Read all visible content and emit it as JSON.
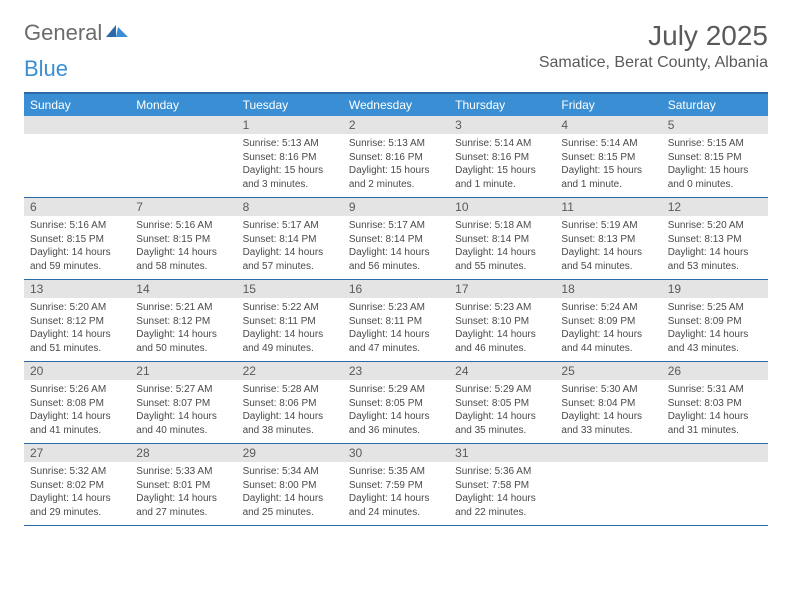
{
  "logo": {
    "general": "General",
    "blue": "Blue"
  },
  "title": "July 2025",
  "location": "Samatice, Berat County, Albania",
  "colors": {
    "header_bg": "#3a8fd4",
    "border": "#2b6aa8",
    "daynum_bg": "#e4e4e4",
    "text_muted": "#5a5a5a",
    "body_text": "#4a4a4a"
  },
  "weekdays": [
    "Sunday",
    "Monday",
    "Tuesday",
    "Wednesday",
    "Thursday",
    "Friday",
    "Saturday"
  ],
  "weeks": [
    [
      {
        "n": "",
        "sunrise": "",
        "sunset": "",
        "daylight": ""
      },
      {
        "n": "",
        "sunrise": "",
        "sunset": "",
        "daylight": ""
      },
      {
        "n": "1",
        "sunrise": "Sunrise: 5:13 AM",
        "sunset": "Sunset: 8:16 PM",
        "daylight": "Daylight: 15 hours and 3 minutes."
      },
      {
        "n": "2",
        "sunrise": "Sunrise: 5:13 AM",
        "sunset": "Sunset: 8:16 PM",
        "daylight": "Daylight: 15 hours and 2 minutes."
      },
      {
        "n": "3",
        "sunrise": "Sunrise: 5:14 AM",
        "sunset": "Sunset: 8:16 PM",
        "daylight": "Daylight: 15 hours and 1 minute."
      },
      {
        "n": "4",
        "sunrise": "Sunrise: 5:14 AM",
        "sunset": "Sunset: 8:15 PM",
        "daylight": "Daylight: 15 hours and 1 minute."
      },
      {
        "n": "5",
        "sunrise": "Sunrise: 5:15 AM",
        "sunset": "Sunset: 8:15 PM",
        "daylight": "Daylight: 15 hours and 0 minutes."
      }
    ],
    [
      {
        "n": "6",
        "sunrise": "Sunrise: 5:16 AM",
        "sunset": "Sunset: 8:15 PM",
        "daylight": "Daylight: 14 hours and 59 minutes."
      },
      {
        "n": "7",
        "sunrise": "Sunrise: 5:16 AM",
        "sunset": "Sunset: 8:15 PM",
        "daylight": "Daylight: 14 hours and 58 minutes."
      },
      {
        "n": "8",
        "sunrise": "Sunrise: 5:17 AM",
        "sunset": "Sunset: 8:14 PM",
        "daylight": "Daylight: 14 hours and 57 minutes."
      },
      {
        "n": "9",
        "sunrise": "Sunrise: 5:17 AM",
        "sunset": "Sunset: 8:14 PM",
        "daylight": "Daylight: 14 hours and 56 minutes."
      },
      {
        "n": "10",
        "sunrise": "Sunrise: 5:18 AM",
        "sunset": "Sunset: 8:14 PM",
        "daylight": "Daylight: 14 hours and 55 minutes."
      },
      {
        "n": "11",
        "sunrise": "Sunrise: 5:19 AM",
        "sunset": "Sunset: 8:13 PM",
        "daylight": "Daylight: 14 hours and 54 minutes."
      },
      {
        "n": "12",
        "sunrise": "Sunrise: 5:20 AM",
        "sunset": "Sunset: 8:13 PM",
        "daylight": "Daylight: 14 hours and 53 minutes."
      }
    ],
    [
      {
        "n": "13",
        "sunrise": "Sunrise: 5:20 AM",
        "sunset": "Sunset: 8:12 PM",
        "daylight": "Daylight: 14 hours and 51 minutes."
      },
      {
        "n": "14",
        "sunrise": "Sunrise: 5:21 AM",
        "sunset": "Sunset: 8:12 PM",
        "daylight": "Daylight: 14 hours and 50 minutes."
      },
      {
        "n": "15",
        "sunrise": "Sunrise: 5:22 AM",
        "sunset": "Sunset: 8:11 PM",
        "daylight": "Daylight: 14 hours and 49 minutes."
      },
      {
        "n": "16",
        "sunrise": "Sunrise: 5:23 AM",
        "sunset": "Sunset: 8:11 PM",
        "daylight": "Daylight: 14 hours and 47 minutes."
      },
      {
        "n": "17",
        "sunrise": "Sunrise: 5:23 AM",
        "sunset": "Sunset: 8:10 PM",
        "daylight": "Daylight: 14 hours and 46 minutes."
      },
      {
        "n": "18",
        "sunrise": "Sunrise: 5:24 AM",
        "sunset": "Sunset: 8:09 PM",
        "daylight": "Daylight: 14 hours and 44 minutes."
      },
      {
        "n": "19",
        "sunrise": "Sunrise: 5:25 AM",
        "sunset": "Sunset: 8:09 PM",
        "daylight": "Daylight: 14 hours and 43 minutes."
      }
    ],
    [
      {
        "n": "20",
        "sunrise": "Sunrise: 5:26 AM",
        "sunset": "Sunset: 8:08 PM",
        "daylight": "Daylight: 14 hours and 41 minutes."
      },
      {
        "n": "21",
        "sunrise": "Sunrise: 5:27 AM",
        "sunset": "Sunset: 8:07 PM",
        "daylight": "Daylight: 14 hours and 40 minutes."
      },
      {
        "n": "22",
        "sunrise": "Sunrise: 5:28 AM",
        "sunset": "Sunset: 8:06 PM",
        "daylight": "Daylight: 14 hours and 38 minutes."
      },
      {
        "n": "23",
        "sunrise": "Sunrise: 5:29 AM",
        "sunset": "Sunset: 8:05 PM",
        "daylight": "Daylight: 14 hours and 36 minutes."
      },
      {
        "n": "24",
        "sunrise": "Sunrise: 5:29 AM",
        "sunset": "Sunset: 8:05 PM",
        "daylight": "Daylight: 14 hours and 35 minutes."
      },
      {
        "n": "25",
        "sunrise": "Sunrise: 5:30 AM",
        "sunset": "Sunset: 8:04 PM",
        "daylight": "Daylight: 14 hours and 33 minutes."
      },
      {
        "n": "26",
        "sunrise": "Sunrise: 5:31 AM",
        "sunset": "Sunset: 8:03 PM",
        "daylight": "Daylight: 14 hours and 31 minutes."
      }
    ],
    [
      {
        "n": "27",
        "sunrise": "Sunrise: 5:32 AM",
        "sunset": "Sunset: 8:02 PM",
        "daylight": "Daylight: 14 hours and 29 minutes."
      },
      {
        "n": "28",
        "sunrise": "Sunrise: 5:33 AM",
        "sunset": "Sunset: 8:01 PM",
        "daylight": "Daylight: 14 hours and 27 minutes."
      },
      {
        "n": "29",
        "sunrise": "Sunrise: 5:34 AM",
        "sunset": "Sunset: 8:00 PM",
        "daylight": "Daylight: 14 hours and 25 minutes."
      },
      {
        "n": "30",
        "sunrise": "Sunrise: 5:35 AM",
        "sunset": "Sunset: 7:59 PM",
        "daylight": "Daylight: 14 hours and 24 minutes."
      },
      {
        "n": "31",
        "sunrise": "Sunrise: 5:36 AM",
        "sunset": "Sunset: 7:58 PM",
        "daylight": "Daylight: 14 hours and 22 minutes."
      },
      {
        "n": "",
        "sunrise": "",
        "sunset": "",
        "daylight": ""
      },
      {
        "n": "",
        "sunrise": "",
        "sunset": "",
        "daylight": ""
      }
    ]
  ]
}
